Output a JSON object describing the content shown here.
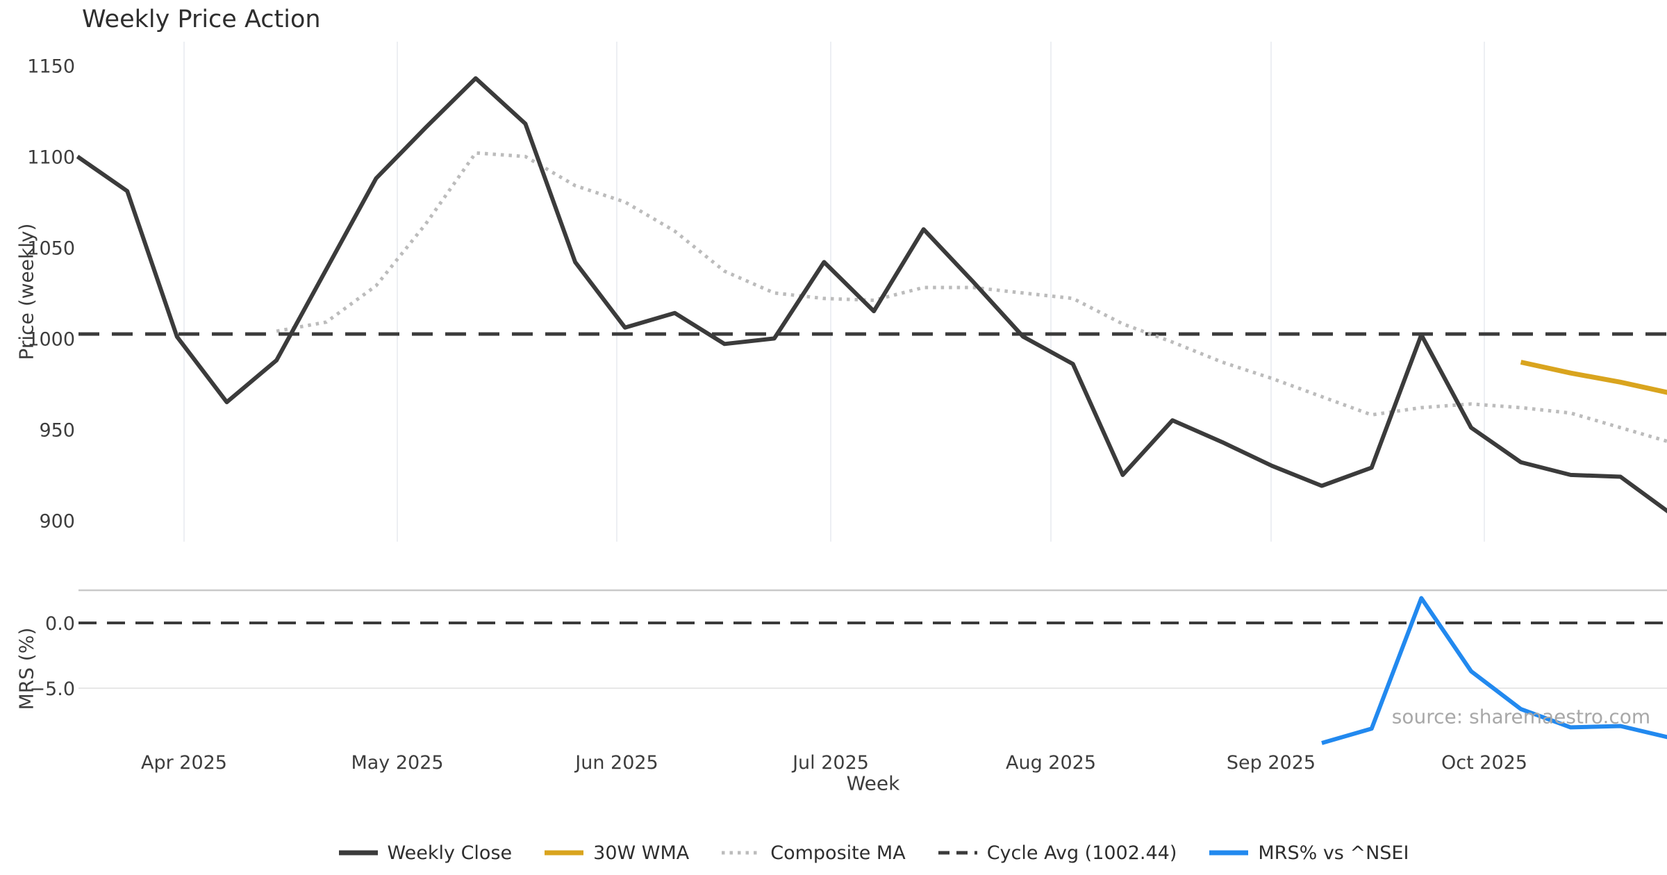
{
  "watermark": "source: sharemaestro.com",
  "legend": {
    "items": [
      {
        "label": "Weekly Close",
        "color": "#3b3b3b",
        "style": "solid"
      },
      {
        "label": "30W WMA",
        "color": "#d9a41e",
        "style": "solid"
      },
      {
        "label": "Composite MA",
        "color": "#bcbcbc",
        "style": "dotted"
      },
      {
        "label": "Cycle Avg (1002.44)",
        "color": "#3b3b3b",
        "style": "dashed"
      },
      {
        "label": "MRS% vs ^NSEI",
        "color": "#2289ef",
        "style": "solid"
      }
    ]
  },
  "chart_data": [
    {
      "id": "price-panel",
      "type": "line",
      "title": "Weekly Price Action",
      "xlabel": "Week",
      "ylabel": "Price (weekly)",
      "grid": "vertical-month-gridlines",
      "legend_position": "bottom-center",
      "ylim": [
        888,
        1163
      ],
      "x": [
        "2025-03-17",
        "2025-03-24",
        "2025-03-31",
        "2025-04-07",
        "2025-04-14",
        "2025-04-21",
        "2025-04-28",
        "2025-05-05",
        "2025-05-12",
        "2025-05-19",
        "2025-05-26",
        "2025-06-02",
        "2025-06-09",
        "2025-06-16",
        "2025-06-23",
        "2025-06-30",
        "2025-07-07",
        "2025-07-14",
        "2025-07-21",
        "2025-07-28",
        "2025-08-04",
        "2025-08-11",
        "2025-08-18",
        "2025-08-25",
        "2025-09-01",
        "2025-09-08",
        "2025-09-15",
        "2025-09-22",
        "2025-09-29",
        "2025-10-06",
        "2025-10-13",
        "2025-10-20",
        "2025-10-27"
      ],
      "x_ticks": [
        {
          "label": "Apr 2025"
        },
        {
          "label": "May 2025"
        },
        {
          "label": "Jun 2025"
        },
        {
          "label": "Jul 2025"
        },
        {
          "label": "Aug 2025"
        },
        {
          "label": "Sep 2025"
        },
        {
          "label": "Oct 2025"
        }
      ],
      "y_ticks": [
        {
          "label": "1150",
          "value": 1150
        },
        {
          "label": "1100",
          "value": 1100
        },
        {
          "label": "1050",
          "value": 1050
        },
        {
          "label": "1000",
          "value": 1000
        },
        {
          "label": "950",
          "value": 950
        },
        {
          "label": "900",
          "value": 900
        }
      ],
      "series": [
        {
          "name": "Weekly Close",
          "color": "#3b3b3b",
          "style": "solid",
          "values": [
            1100,
            1081,
            1001,
            965,
            988,
            1038,
            1088,
            1116,
            1143,
            1118,
            1042,
            1006,
            1014,
            997,
            1000,
            1042,
            1015,
            1060,
            1031,
            1001,
            986,
            925,
            955,
            943,
            930,
            919,
            929,
            1002,
            951,
            932,
            925,
            924,
            904
          ]
        },
        {
          "name": "30W WMA",
          "color": "#d9a41e",
          "style": "solid",
          "values": [
            null,
            null,
            null,
            null,
            null,
            null,
            null,
            null,
            null,
            null,
            null,
            null,
            null,
            null,
            null,
            null,
            null,
            null,
            null,
            null,
            null,
            null,
            null,
            null,
            null,
            null,
            null,
            null,
            null,
            987,
            981,
            976,
            970
          ]
        },
        {
          "name": "Composite MA",
          "color": "#bcbcbc",
          "style": "dotted",
          "values": [
            null,
            null,
            null,
            null,
            1004,
            1009,
            1029,
            1063,
            1102,
            1100,
            1084,
            1075,
            1059,
            1037,
            1025,
            1022,
            1021,
            1028,
            1028,
            1025,
            1022,
            1008,
            998,
            987,
            978,
            968,
            958,
            962,
            964,
            962,
            959,
            951,
            943
          ]
        },
        {
          "name": "Cycle Avg (1002.44)",
          "color": "#3b3b3b",
          "style": "dashed",
          "constant": 1002.44
        }
      ]
    },
    {
      "id": "mrs-panel",
      "type": "line",
      "ylabel": "MRS (%)",
      "ylim": [
        -9.7,
        2.5
      ],
      "zero_line": 0,
      "y_ticks": [
        {
          "label": "0.0",
          "value": 0
        },
        {
          "label": "−5.0",
          "value": -5
        }
      ],
      "series": [
        {
          "name": "MRS% vs ^NSEI",
          "color": "#2289ef",
          "style": "solid",
          "values": [
            null,
            null,
            null,
            null,
            null,
            null,
            null,
            null,
            null,
            null,
            null,
            null,
            null,
            null,
            null,
            null,
            null,
            null,
            null,
            null,
            null,
            null,
            null,
            null,
            null,
            -9.2,
            -8.1,
            1.9,
            -3.7,
            -6.6,
            -8.0,
            -7.9,
            -8.8
          ]
        }
      ]
    }
  ]
}
